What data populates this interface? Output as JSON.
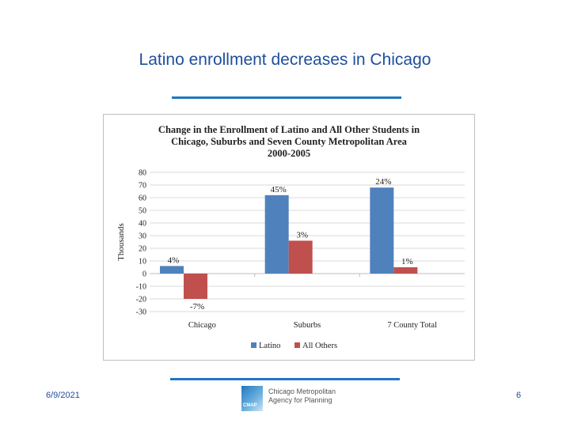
{
  "slide": {
    "title": "Latino enrollment decreases in Chicago",
    "date": "6/9/2021",
    "page_number": "6"
  },
  "logo": {
    "mark_text": "CMAP",
    "line1": "Chicago Metropolitan",
    "line2": "Agency for Planning"
  },
  "colors": {
    "title": "#1f4e9c",
    "rule": "#1f78c1",
    "latino": "#4f81bd",
    "all_others": "#c0504d"
  },
  "chart_data": {
    "type": "bar",
    "title_lines": [
      "Change in the Enrollment of Latino and All Other Students in",
      "Chicago, Suburbs and Seven County Metropolitan Area",
      "2000-2005"
    ],
    "ylabel": "Thousands",
    "xlabel": "",
    "ylim": [
      -30,
      80
    ],
    "yticks": [
      80,
      70,
      60,
      50,
      40,
      30,
      20,
      10,
      0,
      -10,
      -20,
      -30
    ],
    "grid": true,
    "legend_position": "bottom",
    "categories": [
      "Chicago",
      "Suburbs",
      "7 County Total"
    ],
    "series": [
      {
        "name": "Latino",
        "values": [
          6,
          62,
          68
        ],
        "labels": [
          "4%",
          "45%",
          "24%"
        ]
      },
      {
        "name": "All Others",
        "values": [
          -20,
          26,
          5
        ],
        "labels": [
          "-7%",
          "3%",
          "1%"
        ]
      }
    ]
  }
}
